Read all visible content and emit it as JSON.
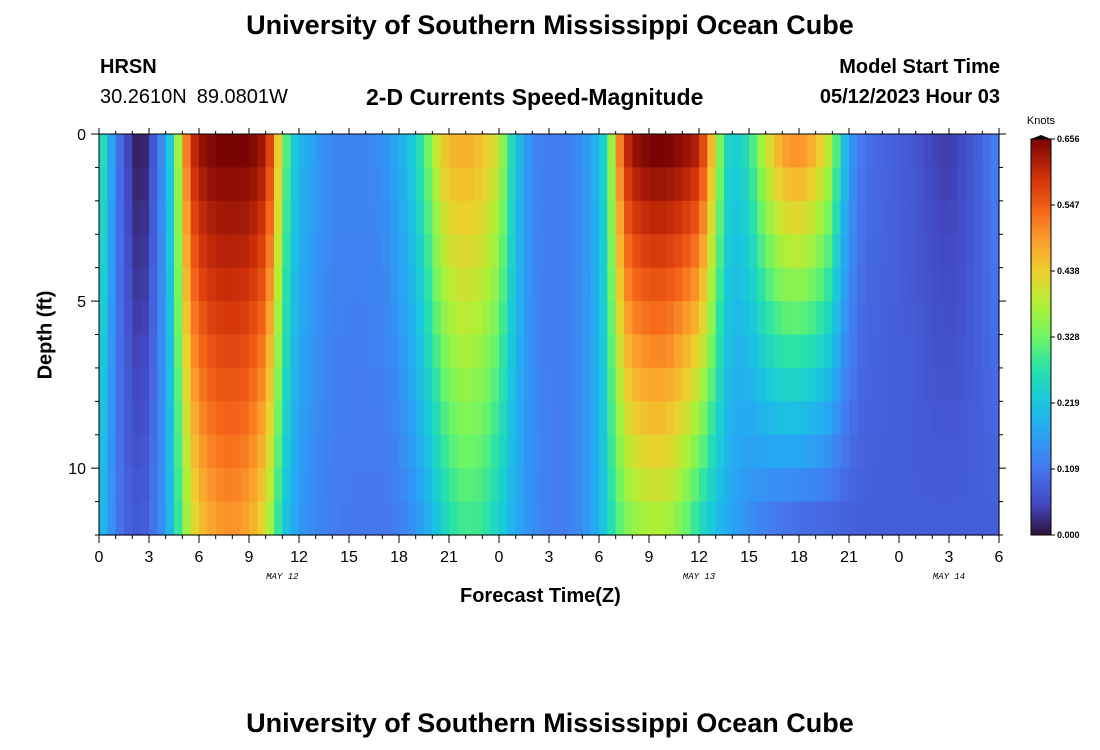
{
  "header": {
    "title": "University of Southern Mississippi Ocean Cube",
    "station": "HRSN",
    "latitude": "30.2610N",
    "longitude": "89.0801W",
    "subtitle": "2-D Currents Speed-Magnitude",
    "model_start_label": "Model Start Time",
    "model_start_value": "05/12/2023 Hour 03"
  },
  "footer": {
    "title": "University of Southern Mississippi Ocean Cube"
  },
  "chart_data": {
    "type": "heatmap",
    "title": "2-D Currents Speed-Magnitude",
    "xlabel": "Forecast Time(Z)",
    "ylabel": "Depth (ft)",
    "xlim": [
      0,
      54
    ],
    "ylim": [
      0,
      12
    ],
    "y_inverted": true,
    "x_ticks": [
      {
        "value": 0,
        "label": "0"
      },
      {
        "value": 3,
        "label": "3"
      },
      {
        "value": 6,
        "label": "6"
      },
      {
        "value": 9,
        "label": "9"
      },
      {
        "value": 12,
        "label": "12"
      },
      {
        "value": 15,
        "label": "15"
      },
      {
        "value": 18,
        "label": "18"
      },
      {
        "value": 21,
        "label": "21"
      },
      {
        "value": 24,
        "label": "0"
      },
      {
        "value": 27,
        "label": "3"
      },
      {
        "value": 30,
        "label": "6"
      },
      {
        "value": 33,
        "label": "9"
      },
      {
        "value": 36,
        "label": "12"
      },
      {
        "value": 39,
        "label": "15"
      },
      {
        "value": 42,
        "label": "18"
      },
      {
        "value": 45,
        "label": "21"
      },
      {
        "value": 48,
        "label": "0"
      },
      {
        "value": 51,
        "label": "3"
      },
      {
        "value": 54,
        "label": "6"
      }
    ],
    "date_labels": [
      {
        "value": 11,
        "label": "MAY 12"
      },
      {
        "value": 36,
        "label": "MAY 13"
      },
      {
        "value": 51,
        "label": "MAY 14"
      }
    ],
    "y_ticks": [
      {
        "value": 0,
        "label": "0"
      },
      {
        "value": 5,
        "label": "5"
      },
      {
        "value": 10,
        "label": "10"
      }
    ],
    "colorbar": {
      "unit": "Knots",
      "min": 0.0,
      "max": 0.656,
      "ticks": [
        "0.000",
        "0.109",
        "0.219",
        "0.328",
        "0.438",
        "0.547",
        "0.656"
      ]
    },
    "time_step_hours": 0.5,
    "depth_levels_ft": [
      0.5,
      1.5,
      2.5,
      3.5,
      4.5,
      5.5,
      6.5,
      7.5,
      8.5,
      9.5,
      10.5,
      11.5
    ],
    "surface_speed_knots": [
      [
        0.0,
        0.3
      ],
      [
        0.5,
        0.22
      ],
      [
        1.0,
        0.12
      ],
      [
        1.5,
        0.07
      ],
      [
        2.0,
        0.03
      ],
      [
        2.5,
        0.0
      ],
      [
        3.0,
        0.04
      ],
      [
        3.5,
        0.1
      ],
      [
        4.0,
        0.17
      ],
      [
        4.5,
        0.28
      ],
      [
        5.0,
        0.45
      ],
      [
        5.5,
        0.58
      ],
      [
        6.0,
        0.63
      ],
      [
        7.0,
        0.656
      ],
      [
        8.0,
        0.656
      ],
      [
        9.0,
        0.656
      ],
      [
        10.0,
        0.62
      ],
      [
        10.5,
        0.52
      ],
      [
        11.0,
        0.36
      ],
      [
        11.5,
        0.25
      ],
      [
        12.0,
        0.2
      ],
      [
        13.0,
        0.16
      ],
      [
        14.0,
        0.13
      ],
      [
        15.0,
        0.13
      ],
      [
        16.0,
        0.13
      ],
      [
        17.0,
        0.14
      ],
      [
        18.0,
        0.18
      ],
      [
        19.0,
        0.24
      ],
      [
        20.0,
        0.36
      ],
      [
        20.5,
        0.43
      ],
      [
        21.0,
        0.46
      ],
      [
        22.0,
        0.47
      ],
      [
        23.0,
        0.45
      ],
      [
        24.0,
        0.4
      ],
      [
        24.5,
        0.3
      ],
      [
        25.0,
        0.22
      ],
      [
        25.5,
        0.17
      ],
      [
        26.0,
        0.13
      ],
      [
        27.0,
        0.12
      ],
      [
        28.0,
        0.12
      ],
      [
        29.0,
        0.14
      ],
      [
        30.0,
        0.2
      ],
      [
        30.5,
        0.28
      ],
      [
        31.0,
        0.45
      ],
      [
        31.5,
        0.58
      ],
      [
        32.0,
        0.63
      ],
      [
        33.0,
        0.656
      ],
      [
        34.0,
        0.656
      ],
      [
        35.0,
        0.64
      ],
      [
        36.0,
        0.61
      ],
      [
        36.5,
        0.52
      ],
      [
        37.0,
        0.4
      ],
      [
        37.5,
        0.28
      ],
      [
        38.0,
        0.22
      ],
      [
        39.0,
        0.27
      ],
      [
        40.0,
        0.4
      ],
      [
        41.0,
        0.48
      ],
      [
        42.0,
        0.5
      ],
      [
        43.0,
        0.46
      ],
      [
        44.0,
        0.37
      ],
      [
        44.5,
        0.24
      ],
      [
        45.0,
        0.17
      ],
      [
        45.5,
        0.12
      ],
      [
        46.0,
        0.1
      ],
      [
        47.0,
        0.09
      ],
      [
        48.0,
        0.08
      ],
      [
        49.0,
        0.07
      ],
      [
        50.0,
        0.05
      ],
      [
        51.0,
        0.04
      ],
      [
        52.0,
        0.06
      ],
      [
        53.0,
        0.09
      ],
      [
        54.0,
        0.13
      ]
    ],
    "bottom_speed_knots": [
      [
        0.0,
        0.22
      ],
      [
        0.5,
        0.17
      ],
      [
        1.0,
        0.12
      ],
      [
        1.5,
        0.09
      ],
      [
        2.0,
        0.08
      ],
      [
        2.5,
        0.07
      ],
      [
        3.0,
        0.09
      ],
      [
        3.5,
        0.12
      ],
      [
        4.0,
        0.16
      ],
      [
        4.5,
        0.24
      ],
      [
        5.0,
        0.33
      ],
      [
        5.5,
        0.4
      ],
      [
        6.0,
        0.45
      ],
      [
        7.0,
        0.49
      ],
      [
        8.0,
        0.5
      ],
      [
        9.0,
        0.48
      ],
      [
        10.0,
        0.42
      ],
      [
        10.5,
        0.33
      ],
      [
        11.0,
        0.24
      ],
      [
        11.5,
        0.19
      ],
      [
        12.0,
        0.16
      ],
      [
        13.0,
        0.13
      ],
      [
        14.0,
        0.12
      ],
      [
        15.0,
        0.11
      ],
      [
        16.0,
        0.11
      ],
      [
        17.0,
        0.11
      ],
      [
        18.0,
        0.12
      ],
      [
        19.0,
        0.15
      ],
      [
        20.0,
        0.2
      ],
      [
        21.0,
        0.27
      ],
      [
        22.0,
        0.3
      ],
      [
        23.0,
        0.29
      ],
      [
        24.0,
        0.24
      ],
      [
        25.0,
        0.18
      ],
      [
        26.0,
        0.14
      ],
      [
        27.0,
        0.12
      ],
      [
        28.0,
        0.12
      ],
      [
        29.0,
        0.14
      ],
      [
        30.0,
        0.19
      ],
      [
        31.0,
        0.3
      ],
      [
        32.0,
        0.36
      ],
      [
        33.0,
        0.38
      ],
      [
        34.0,
        0.38
      ],
      [
        35.0,
        0.34
      ],
      [
        36.0,
        0.27
      ],
      [
        37.0,
        0.21
      ],
      [
        38.0,
        0.17
      ],
      [
        39.0,
        0.14
      ],
      [
        40.0,
        0.12
      ],
      [
        42.0,
        0.1
      ],
      [
        44.0,
        0.09
      ],
      [
        46.0,
        0.08
      ],
      [
        48.0,
        0.08
      ],
      [
        50.0,
        0.08
      ],
      [
        52.0,
        0.08
      ],
      [
        54.0,
        0.08
      ]
    ]
  }
}
